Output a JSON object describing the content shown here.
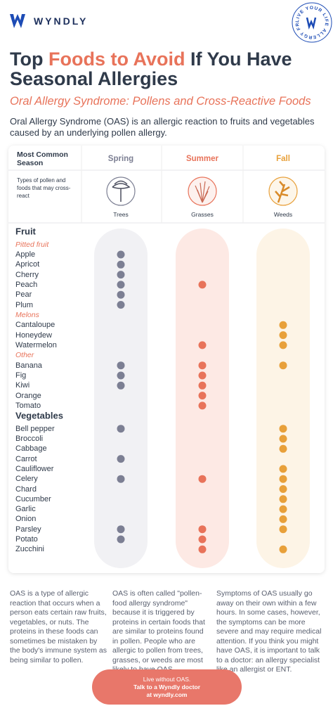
{
  "header": {
    "logo": "WYNDLY",
    "badge": "LIVE YOUR LIFE ALLERGY FREE"
  },
  "title": {
    "part1": "Top ",
    "highlight": "Foods to Avoid",
    "part2": " If You Have Seasonal Allergies"
  },
  "subtitle": "Oral Allergy Syndrome: Pollens and Cross-Reactive Foods",
  "intro": "Oral Allergy Syndrome (OAS) is an allergic reaction to fruits and vegetables caused by an underlying pollen allergy.",
  "table": {
    "season_header": "Most Common Season",
    "pollen_header": "Types of pollen and foods that may cross-react",
    "columns": [
      {
        "name": "Spring",
        "pollen": "Trees"
      },
      {
        "name": "Summer",
        "pollen": "Grasses"
      },
      {
        "name": "Fall",
        "pollen": "Weeds"
      }
    ],
    "sections": [
      {
        "title": "Fruit",
        "groups": [
          {
            "name": "Pitted fruit",
            "items": [
              {
                "name": "Apple",
                "spring": true,
                "summer": false,
                "fall": false
              },
              {
                "name": "Apricot",
                "spring": true,
                "summer": false,
                "fall": false
              },
              {
                "name": "Cherry",
                "spring": true,
                "summer": false,
                "fall": false
              },
              {
                "name": "Peach",
                "spring": true,
                "summer": true,
                "fall": false
              },
              {
                "name": "Pear",
                "spring": true,
                "summer": false,
                "fall": false
              },
              {
                "name": "Plum",
                "spring": true,
                "summer": false,
                "fall": false
              }
            ]
          },
          {
            "name": "Melons",
            "items": [
              {
                "name": "Cantaloupe",
                "spring": false,
                "summer": false,
                "fall": true
              },
              {
                "name": "Honeydew",
                "spring": false,
                "summer": false,
                "fall": true
              },
              {
                "name": "Watermelon",
                "spring": false,
                "summer": true,
                "fall": true
              }
            ]
          },
          {
            "name": "Other",
            "items": [
              {
                "name": "Banana",
                "spring": true,
                "summer": true,
                "fall": true
              },
              {
                "name": "Fig",
                "spring": true,
                "summer": true,
                "fall": false
              },
              {
                "name": "Kiwi",
                "spring": true,
                "summer": true,
                "fall": false
              },
              {
                "name": "Orange",
                "spring": false,
                "summer": true,
                "fall": false
              },
              {
                "name": "Tomato",
                "spring": false,
                "summer": true,
                "fall": false
              }
            ]
          }
        ]
      },
      {
        "title": "Vegetables",
        "groups": [
          {
            "items": [
              {
                "name": "Bell pepper",
                "spring": true,
                "summer": false,
                "fall": true
              },
              {
                "name": "Broccoli",
                "spring": false,
                "summer": false,
                "fall": true
              },
              {
                "name": "Cabbage",
                "spring": false,
                "summer": false,
                "fall": true
              },
              {
                "name": "Carrot",
                "spring": true,
                "summer": false,
                "fall": false
              },
              {
                "name": "Cauliflower",
                "spring": false,
                "summer": false,
                "fall": true
              },
              {
                "name": "Celery",
                "spring": true,
                "summer": true,
                "fall": true
              },
              {
                "name": "Chard",
                "spring": false,
                "summer": false,
                "fall": true
              },
              {
                "name": "Cucumber",
                "spring": false,
                "summer": false,
                "fall": true
              },
              {
                "name": "Garlic",
                "spring": false,
                "summer": false,
                "fall": true
              },
              {
                "name": "Onion",
                "spring": false,
                "summer": false,
                "fall": true
              },
              {
                "name": "Parsley",
                "spring": true,
                "summer": true,
                "fall": true
              },
              {
                "name": "Potato",
                "spring": true,
                "summer": true,
                "fall": false
              },
              {
                "name": "Zucchini",
                "spring": false,
                "summer": true,
                "fall": true
              }
            ]
          }
        ]
      }
    ]
  },
  "footer": {
    "columns": [
      "OAS is a type of allergic reaction that occurs when a person eats certain raw fruits, vegetables, or nuts. The proteins in these foods can sometimes be mistaken by the body's immune system as being similar to pollen.",
      "OAS is often called \"pollen-food allergy syndrome\" because it is triggered by proteins in certain foods that are similar to proteins found in pollen. People who are allergic to pollen from trees, grasses, or weeds are most likely to have OAS.",
      "Symptoms of OAS usually go away on their own within a few hours. In some cases, however, the symptoms can be more severe and may require medical attention. If you think you might have OAS, it is important to talk to a doctor: an allergy specialist like an allergist or ENT."
    ],
    "button": [
      "Live without OAS.",
      "Talk to a Wyndly doctor",
      "at wyndly.com"
    ]
  }
}
